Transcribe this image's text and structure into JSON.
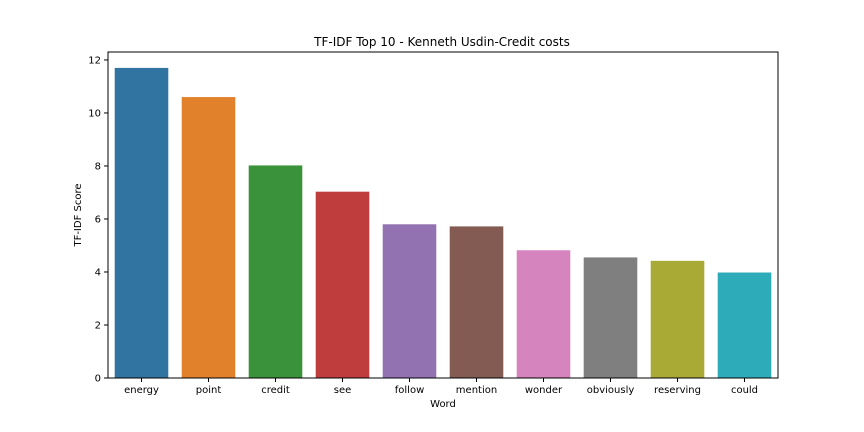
{
  "chart_data": {
    "type": "bar",
    "title": "TF-IDF Top 10 - Kenneth Usdin-Credit costs",
    "xlabel": "Word",
    "ylabel": "TF-IDF Score",
    "categories": [
      "energy",
      "point",
      "credit",
      "see",
      "follow",
      "mention",
      "wonder",
      "obviously",
      "reserving",
      "could"
    ],
    "values": [
      11.7,
      10.6,
      8.02,
      7.03,
      5.8,
      5.72,
      4.82,
      4.55,
      4.42,
      3.98
    ],
    "colors": [
      "#3274a1",
      "#e1812c",
      "#3a923a",
      "#c03d3e",
      "#9372b2",
      "#845b53",
      "#d684bd",
      "#7f7f7f",
      "#a9aa35",
      "#2eabb8"
    ],
    "ylim": [
      0,
      12.3
    ],
    "yticks": [
      0,
      2,
      4,
      6,
      8,
      10,
      12
    ],
    "grid": false,
    "legend": "none"
  }
}
